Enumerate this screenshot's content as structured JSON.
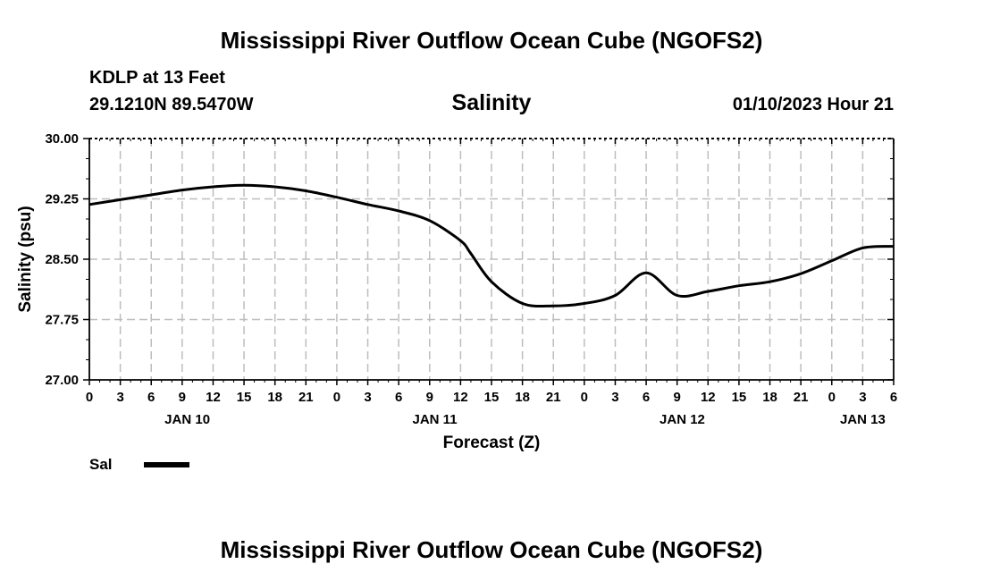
{
  "header": {
    "title": "Mississippi River Outflow Ocean Cube (NGOFS2)",
    "footer_title": "Mississippi River Outflow Ocean Cube (NGOFS2)",
    "station": "KDLP at 13 Feet",
    "coordinates": "29.1210N  89.5470W",
    "datetime": "01/10/2023 Hour 21"
  },
  "chart_data": {
    "type": "line",
    "title": "Salinity",
    "xlabel": "Forecast (Z)",
    "ylabel": "Salinity (psu)",
    "ylim": [
      27.0,
      30.0
    ],
    "yticks": [
      "27.00",
      "27.75",
      "28.50",
      "29.25",
      "30.00"
    ],
    "yticks_values": [
      27.0,
      27.75,
      28.5,
      29.25,
      30.0
    ],
    "xlim_hours": [
      0,
      78
    ],
    "xticks": [
      "0",
      "3",
      "6",
      "9",
      "12",
      "15",
      "18",
      "21",
      "0",
      "3",
      "6",
      "9",
      "12",
      "15",
      "18",
      "21",
      "0",
      "3",
      "6",
      "9",
      "12",
      "15",
      "18",
      "21",
      "0",
      "3",
      "6"
    ],
    "date_labels": [
      {
        "label": "JAN 10",
        "hour": 9.5
      },
      {
        "label": "JAN 11",
        "hour": 33.5
      },
      {
        "label": "JAN 12",
        "hour": 57.5
      },
      {
        "label": "JAN 13",
        "hour": 75
      }
    ],
    "grid": true,
    "series": [
      {
        "name": "Sal",
        "color": "#000000",
        "x_hours": [
          0,
          3,
          6,
          9,
          12,
          15,
          18,
          21,
          24,
          27,
          30,
          33,
          36,
          37,
          39,
          42,
          45,
          48,
          51,
          54,
          57,
          60,
          63,
          66,
          69,
          72,
          75,
          78
        ],
        "values": [
          29.18,
          29.24,
          29.3,
          29.36,
          29.4,
          29.42,
          29.4,
          29.35,
          29.27,
          29.18,
          29.1,
          28.98,
          28.73,
          28.57,
          28.22,
          27.95,
          27.92,
          27.95,
          28.05,
          28.33,
          28.05,
          28.1,
          28.17,
          28.22,
          28.32,
          28.48,
          28.64,
          28.66
        ]
      }
    ],
    "legend": [
      {
        "label": "Sal",
        "color": "#000000"
      }
    ]
  }
}
